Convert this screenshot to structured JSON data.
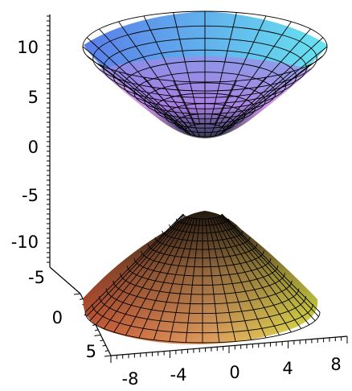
{
  "chart_data": {
    "type": "surface3d",
    "title": "",
    "surface": "hyperboloid of two sheets",
    "z_axis": {
      "ticks": [
        10,
        5,
        0,
        -5,
        -10
      ],
      "labels": [
        "10",
        "5",
        "0",
        "-5",
        "-10"
      ]
    },
    "y_axis": {
      "ticks": [
        -5,
        0,
        5
      ],
      "labels": [
        "-5",
        "0",
        "5"
      ]
    },
    "x_axis": {
      "ticks": [
        -8,
        -4,
        0,
        4,
        8
      ],
      "labels": [
        "-8",
        "-4",
        "0",
        "4",
        "8"
      ]
    },
    "sheets": [
      {
        "name_hint": "upper",
        "opening": "up",
        "vertex_z": 1,
        "rim_z": 10
      },
      {
        "name_hint": "lower",
        "opening": "down",
        "vertex_z": -7.5,
        "rim_z": -18
      }
    ],
    "colors": {
      "upper_left": "#5a7ee8",
      "upper_right": "#68e4f0",
      "upper_inner": "#c070e0",
      "lower_left": "#d05a38",
      "lower_right": "#e6ea4a",
      "lower_top": "#504030"
    }
  }
}
